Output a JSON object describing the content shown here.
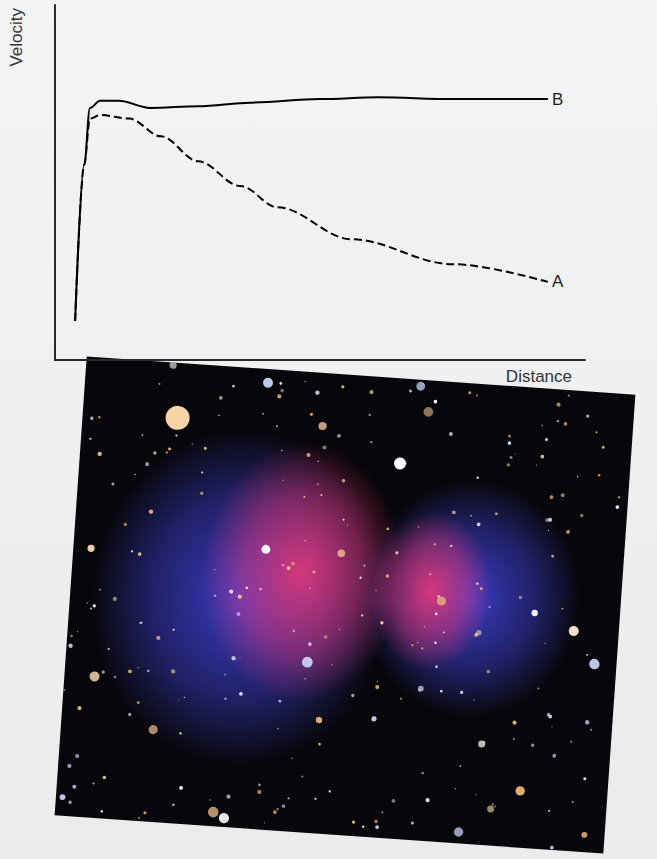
{
  "chart_data": {
    "type": "line",
    "x_label": "Distance",
    "y_label": "Velocity",
    "xlim": [
      0,
      100
    ],
    "ylim": [
      0,
      100
    ],
    "tick_labels": false,
    "grid": false,
    "series": [
      {
        "name": "B",
        "color": "#000000",
        "line_style": "solid",
        "x": [
          3.8,
          5.5,
          6.6,
          8.5,
          12,
          18,
          27,
          37,
          50,
          61,
          75,
          93
        ],
        "values": [
          11,
          55,
          71,
          73,
          73,
          71,
          71.5,
          72.5,
          73.5,
          74,
          73.5,
          73.5
        ]
      },
      {
        "name": "A",
        "color": "#000000",
        "line_style": "dashed",
        "x": [
          3.8,
          5.5,
          6.6,
          8.5,
          14,
          20,
          27,
          35,
          42,
          56,
          75,
          93
        ],
        "values": [
          11,
          55,
          68,
          69,
          68,
          63,
          56,
          49,
          43,
          34,
          27,
          22
        ]
      }
    ]
  }
}
